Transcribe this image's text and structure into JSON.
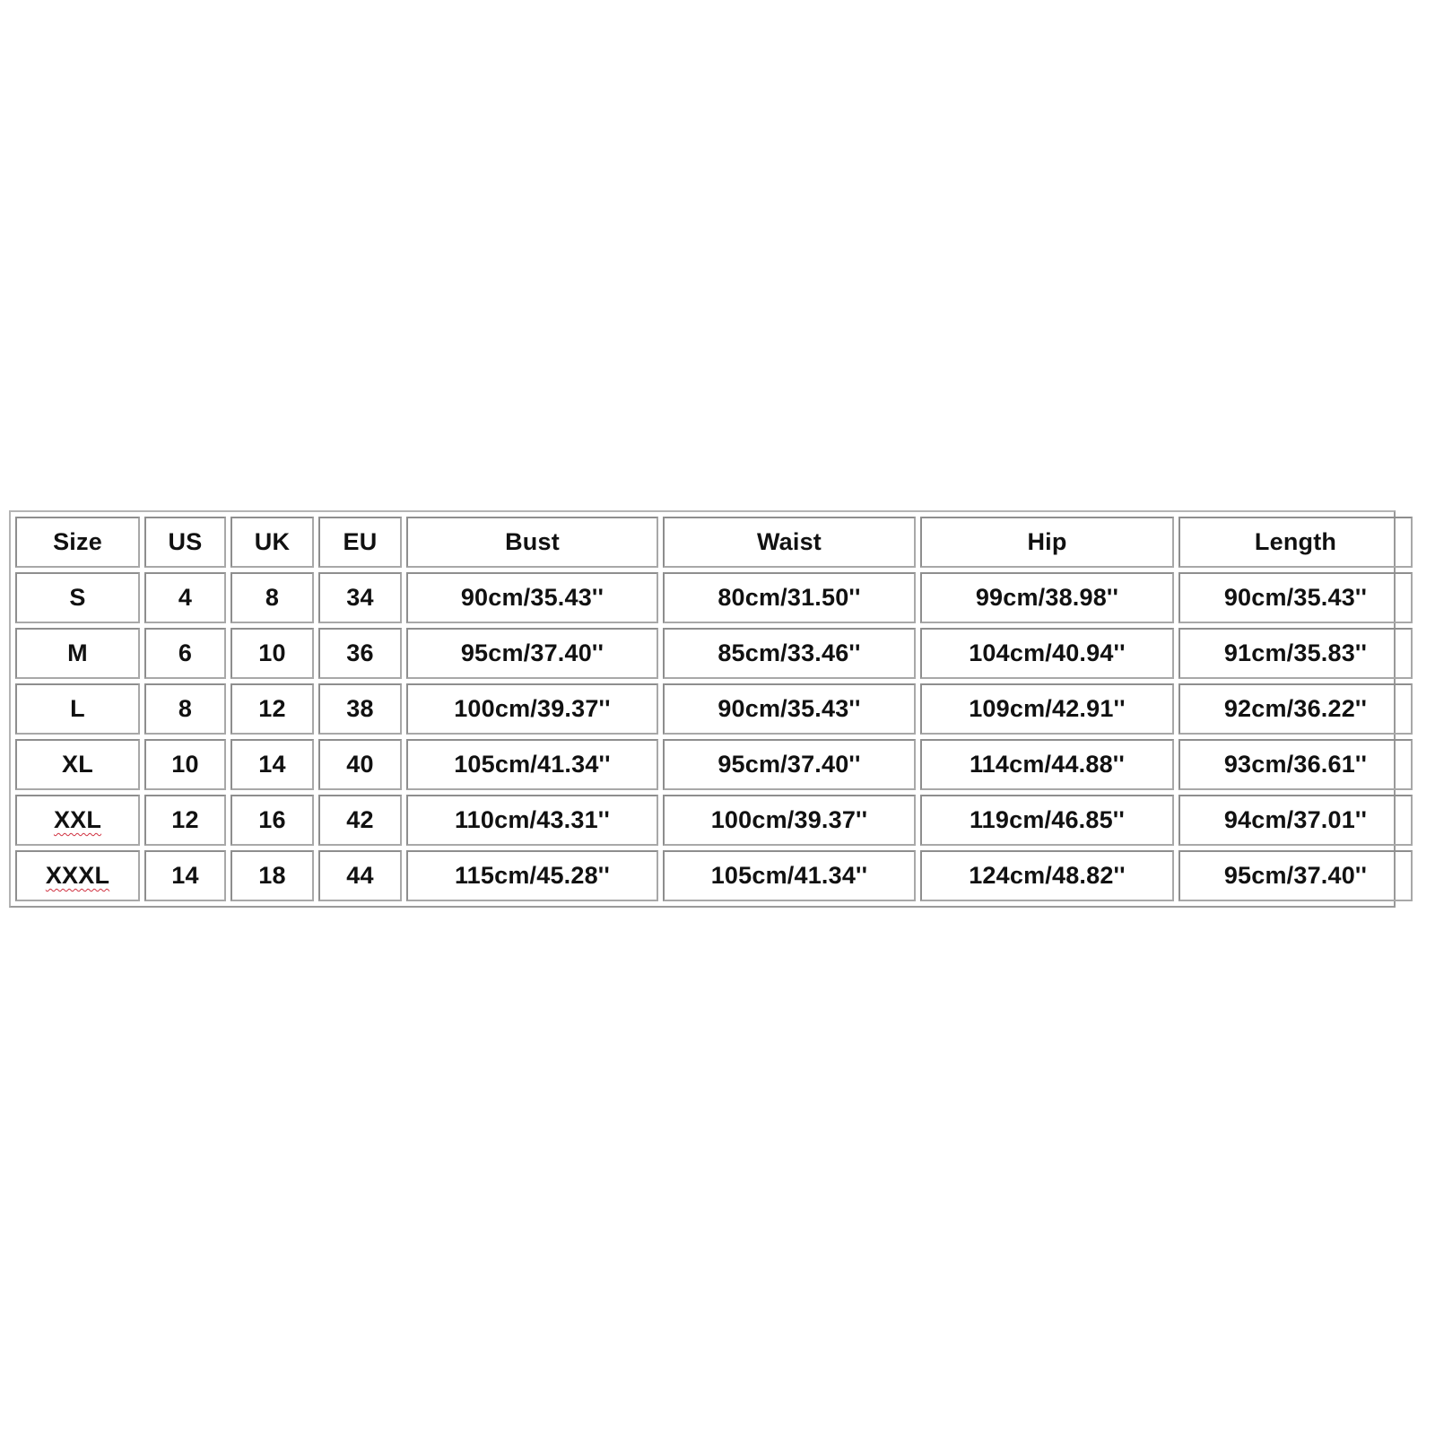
{
  "size_chart": {
    "headers": [
      "Size",
      "US",
      "UK",
      "EU",
      "Bust",
      "Waist",
      "Hip",
      "Length"
    ],
    "rows": [
      [
        "S",
        "4",
        "8",
        "34",
        "90cm/35.43''",
        "80cm/31.50''",
        "99cm/38.98''",
        "90cm/35.43''"
      ],
      [
        "M",
        "6",
        "10",
        "36",
        "95cm/37.40''",
        "85cm/33.46''",
        "104cm/40.94''",
        "91cm/35.83''"
      ],
      [
        "L",
        "8",
        "12",
        "38",
        "100cm/39.37''",
        "90cm/35.43''",
        "109cm/42.91''",
        "92cm/36.22''"
      ],
      [
        "XL",
        "10",
        "14",
        "40",
        "105cm/41.34''",
        "95cm/37.40''",
        "114cm/44.88''",
        "93cm/36.61''"
      ],
      [
        "XXL",
        "12",
        "16",
        "42",
        "110cm/43.31''",
        "100cm/39.37''",
        "119cm/46.85''",
        "94cm/37.01''"
      ],
      [
        "XXXL",
        "14",
        "18",
        "44",
        "115cm/45.28''",
        "105cm/41.34''",
        "124cm/48.82''",
        "95cm/37.40''"
      ]
    ],
    "spellcheck_underlined": [
      "XXL",
      "XXXL"
    ],
    "colors": {
      "border": "#a8a8a8",
      "text": "#111111",
      "squiggle": "#d03040"
    }
  }
}
